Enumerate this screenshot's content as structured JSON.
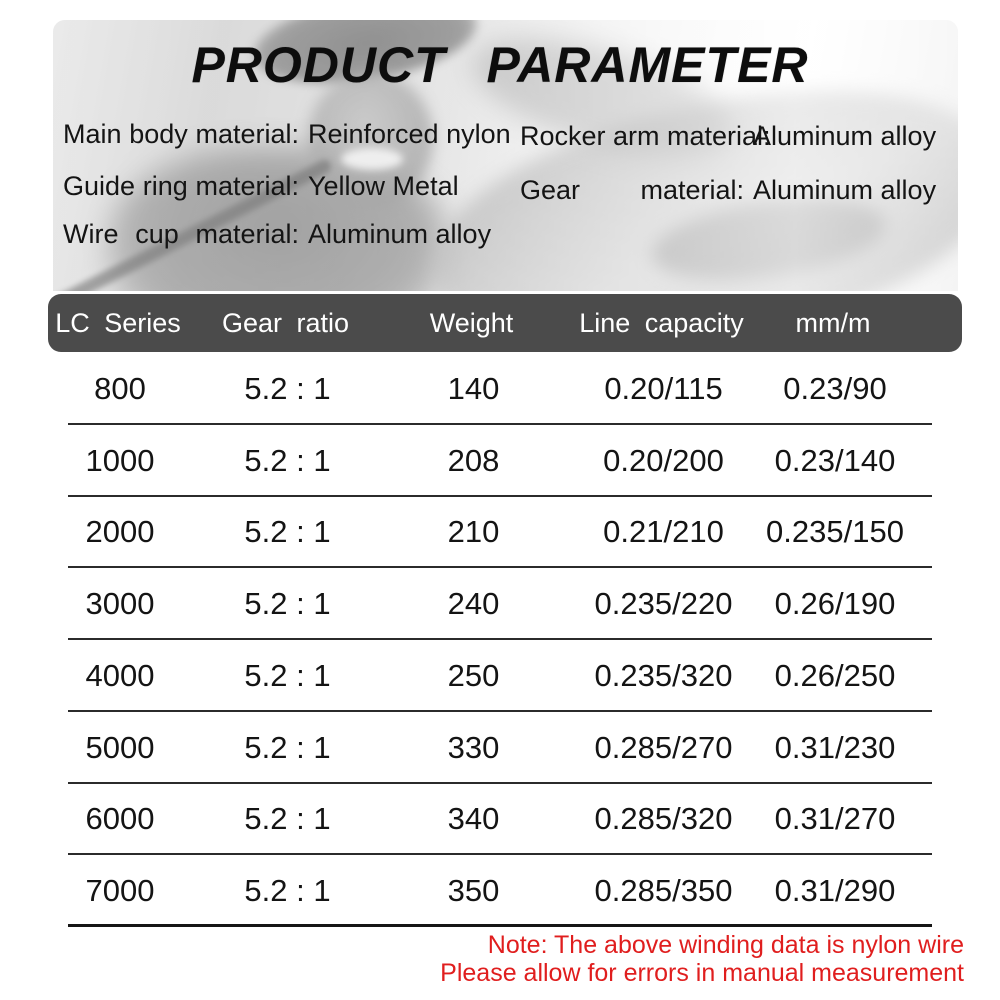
{
  "title": "PRODUCT PARAMETER",
  "materials": {
    "left": [
      {
        "label": "Main body material:",
        "value": "Reinforced nylon"
      },
      {
        "label": "Guide ring material:",
        "value": "Yellow Metal"
      },
      {
        "label": "Wire cup material:",
        "value": "Aluminum alloy"
      }
    ],
    "right": [
      {
        "label": "Rocker arm material:",
        "value": "Aluminum alloy"
      },
      {
        "label": "Gear material:",
        "value": "Aluminum alloy"
      }
    ]
  },
  "table": {
    "headers": [
      "LC Series",
      "Gear ratio",
      "Weight",
      "Line capacity",
      "mm/m"
    ],
    "rows": [
      [
        "800",
        "5.2 : 1",
        "140",
        "0.20/115",
        "0.23/90"
      ],
      [
        "1000",
        "5.2 : 1",
        "208",
        "0.20/200",
        "0.23/140"
      ],
      [
        "2000",
        "5.2 : 1",
        "210",
        "0.21/210",
        "0.235/150"
      ],
      [
        "3000",
        "5.2 : 1",
        "240",
        "0.235/220",
        "0.26/190"
      ],
      [
        "4000",
        "5.2 : 1",
        "250",
        "0.235/320",
        "0.26/250"
      ],
      [
        "5000",
        "5.2 : 1",
        "330",
        "0.285/270",
        "0.31/230"
      ],
      [
        "6000",
        "5.2 : 1",
        "340",
        "0.285/320",
        "0.31/270"
      ],
      [
        "7000",
        "5.2 : 1",
        "350",
        "0.285/350",
        "0.31/290"
      ]
    ]
  },
  "note": {
    "line1": "Note: The above winding data is nylon wire",
    "line2": "Please allow for errors in manual measurement"
  },
  "colors": {
    "header_bg": "#4b4b4b",
    "header_text": "#ffffff",
    "body_text": "#141414",
    "divider": "#2b2b2b",
    "note_red": "#e01e1e",
    "title_color": "#0d0d0d"
  }
}
